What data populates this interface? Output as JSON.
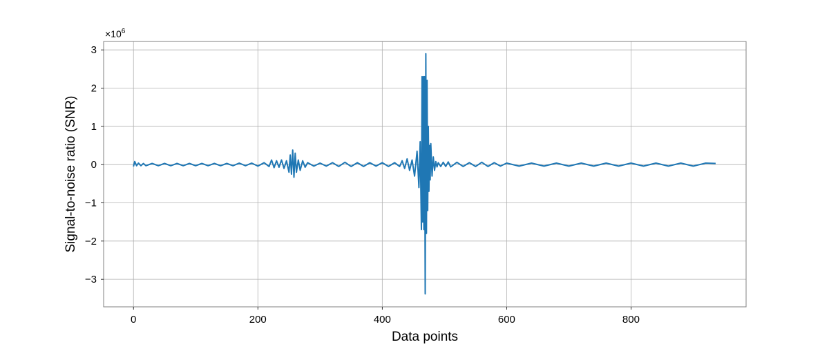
{
  "chart_data": {
    "type": "line",
    "title": "",
    "xlabel": "Data points",
    "ylabel": "Signal-to-noise ratio (SNR)",
    "y_multiplier_label": "×10",
    "y_multiplier_exponent": "6",
    "xlim": [
      -48,
      985
    ],
    "ylim": [
      -3.72,
      3.22
    ],
    "xticks": [
      0,
      200,
      400,
      600,
      800
    ],
    "xtick_labels": [
      "0",
      "200",
      "400",
      "600",
      "800"
    ],
    "yticks": [
      -3,
      -2,
      -1,
      0,
      1,
      2,
      3
    ],
    "ytick_labels": [
      "−3",
      "−2",
      "−1",
      "0",
      "1",
      "2",
      "3"
    ],
    "grid": true,
    "color": "#1f77b4",
    "series": [
      {
        "x": [
          0,
          2,
          5,
          8,
          12,
          16,
          20,
          30,
          40,
          50,
          60,
          70,
          80,
          90,
          100,
          110,
          120,
          130,
          140,
          150,
          160,
          170,
          180,
          190,
          200,
          210,
          218,
          222,
          226,
          230,
          234,
          238,
          242,
          246,
          250,
          252,
          254,
          256,
          258,
          260,
          262,
          265,
          268,
          272,
          276,
          280,
          290,
          300,
          310,
          320,
          330,
          340,
          350,
          360,
          370,
          380,
          390,
          400,
          410,
          420,
          428,
          432,
          436,
          440,
          444,
          448,
          452,
          456,
          459,
          461,
          463,
          464,
          465,
          466,
          467,
          468,
          469,
          470,
          471,
          472,
          473,
          474,
          475,
          476,
          477,
          478,
          480,
          482,
          484,
          486,
          488,
          490,
          494,
          498,
          502,
          506,
          510,
          520,
          530,
          540,
          550,
          560,
          570,
          580,
          590,
          600,
          620,
          640,
          660,
          680,
          700,
          720,
          740,
          760,
          780,
          800,
          820,
          840,
          860,
          880,
          900,
          920,
          936
        ],
        "values": [
          -0.05,
          0.08,
          -0.03,
          0.04,
          -0.03,
          0.03,
          -0.03,
          0.03,
          -0.03,
          0.03,
          -0.03,
          0.03,
          -0.03,
          0.03,
          -0.03,
          0.03,
          -0.03,
          0.03,
          -0.03,
          0.03,
          -0.03,
          0.04,
          -0.03,
          0.04,
          -0.04,
          0.05,
          -0.05,
          0.12,
          -0.08,
          0.1,
          -0.07,
          0.12,
          -0.1,
          0.1,
          -0.2,
          0.25,
          -0.25,
          0.38,
          -0.33,
          0.3,
          -0.2,
          0.12,
          -0.15,
          0.1,
          -0.07,
          0.05,
          -0.04,
          0.04,
          -0.04,
          0.05,
          -0.05,
          0.06,
          -0.05,
          0.05,
          -0.05,
          0.05,
          -0.04,
          0.05,
          -0.05,
          0.05,
          -0.05,
          0.1,
          -0.1,
          0.15,
          -0.15,
          0.12,
          -0.3,
          0.35,
          -0.6,
          0.6,
          -1.7,
          2.3,
          -1.5,
          2.3,
          -1.7,
          2.3,
          -3.38,
          2.9,
          -1.8,
          2.2,
          -1.2,
          1.0,
          -0.7,
          0.5,
          -0.4,
          0.55,
          -0.3,
          0.2,
          -0.15,
          0.08,
          -0.06,
          0.05,
          -0.05,
          0.06,
          -0.05,
          0.07,
          -0.06,
          0.06,
          -0.05,
          0.05,
          -0.05,
          0.06,
          -0.05,
          0.05,
          -0.04,
          0.04,
          -0.04,
          0.04,
          -0.04,
          0.04,
          -0.04,
          0.04,
          -0.04,
          0.04,
          -0.04,
          0.04,
          -0.04,
          0.04,
          -0.04,
          0.04,
          -0.04,
          0.04,
          0.03
        ]
      }
    ]
  }
}
